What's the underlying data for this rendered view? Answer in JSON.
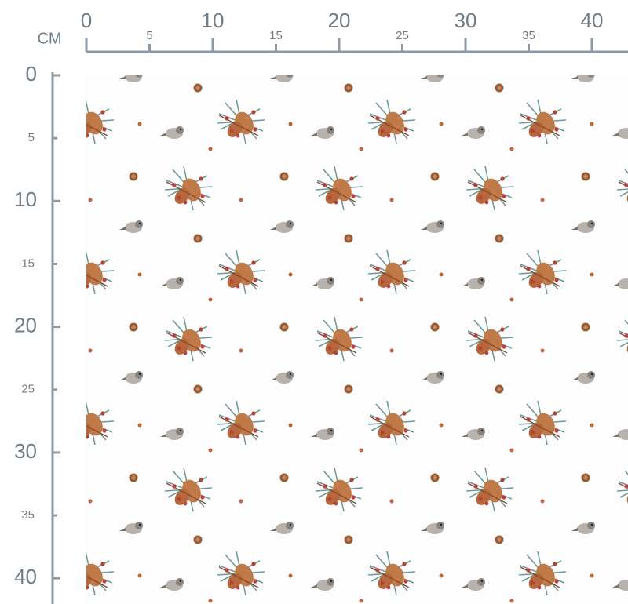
{
  "unit": "CM",
  "top_ruler": {
    "labels": [
      0,
      5,
      10,
      15,
      20,
      25,
      30,
      35,
      40
    ]
  },
  "left_ruler": {
    "labels": [
      0,
      5,
      10,
      15,
      20,
      25,
      30,
      35,
      40
    ]
  }
}
